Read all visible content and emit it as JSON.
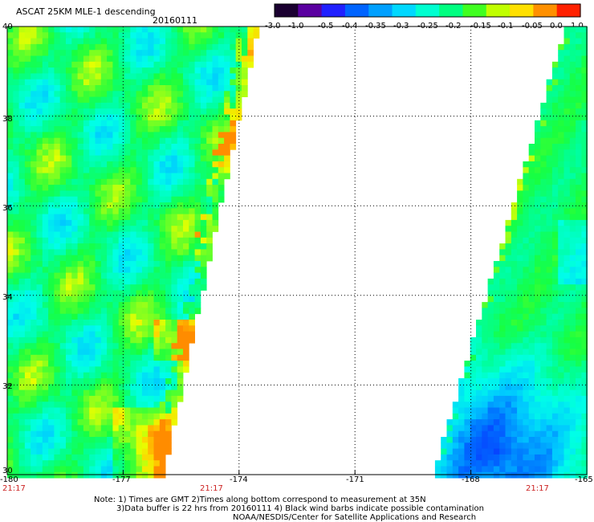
{
  "header": {
    "title": "ASCAT 25KM MLE-1 descending",
    "date": "20160111"
  },
  "colorbar": {
    "labels": [
      "-3.0",
      "-1.0",
      "-0.5",
      "-0.4",
      "-0.35",
      "-0.3",
      "-0.25",
      "-0.2",
      "-0.15",
      "-0.1",
      "-0.05",
      "0.0",
      "1.0"
    ],
    "colors": [
      "#1a0030",
      "#5a00a0",
      "#2020ff",
      "#0064ff",
      "#00a0ff",
      "#00d8ff",
      "#00ffd0",
      "#00ff80",
      "#40ff20",
      "#c0ff00",
      "#ffe000",
      "#ff9000",
      "#ff2000"
    ]
  },
  "map": {
    "lon_min": -180,
    "lon_max": -165,
    "lat_min": 30,
    "lat_max": 40,
    "lon_ticks": [
      "-180",
      "-177",
      "-174",
      "-171",
      "-168",
      "-165"
    ],
    "lat_ticks": [
      "40",
      "38",
      "36",
      "34",
      "32",
      "30"
    ],
    "grid_lons": [
      -177,
      -174,
      -171,
      -168
    ],
    "grid_lats": [
      32,
      34,
      36,
      38
    ],
    "pass_times": [
      "21:17",
      "21:17",
      "21:17"
    ]
  },
  "footer": {
    "note_line1": "Note: 1) Times are GMT 2)Times along bottom correspond to measurement at 35N",
    "note_line2": "3)Data buffer is 22 hrs from 20160111 4) Black wind barbs indicate possible contamination",
    "credit": "NOAA/NESDIS/Center for Satellite Applications and Research"
  }
}
